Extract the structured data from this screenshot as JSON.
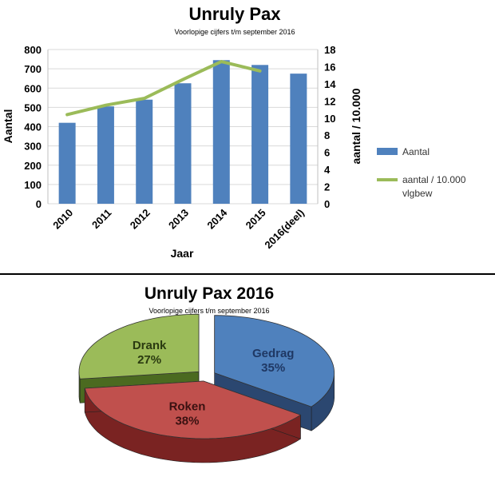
{
  "chart_data": [
    {
      "type": "bar",
      "title": "Unruly Pax",
      "subtitle": "Voorlopige cijfers t/m september 2016",
      "xlabel": "Jaar",
      "ylabel": "Aantal",
      "y2label": "aantal / 10.000",
      "categories": [
        "2010",
        "2011",
        "2012",
        "2013",
        "2014",
        "2015",
        "2016(deel)"
      ],
      "ylim": [
        0,
        800
      ],
      "y_ticks": [
        "0",
        "100",
        "200",
        "300",
        "400",
        "500",
        "600",
        "700",
        "800"
      ],
      "y2lim": [
        0,
        18
      ],
      "y2_ticks": [
        "0",
        "2",
        "4",
        "6",
        "8",
        "10",
        "12",
        "14",
        "16",
        "18"
      ],
      "series": [
        {
          "name": "Aantal",
          "kind": "bar",
          "axis": "left",
          "color": "#4f81bd",
          "values": [
            420,
            505,
            540,
            625,
            745,
            720,
            675
          ]
        },
        {
          "name": "aantal / 10.000 vlgbew",
          "kind": "line",
          "axis": "right",
          "color": "#9bbb59",
          "values": [
            10.4,
            11.5,
            12.3,
            14.5,
            16.6,
            15.5,
            null
          ]
        }
      ],
      "legend": "right",
      "grid": true
    },
    {
      "type": "pie",
      "title": "Unruly Pax 2016",
      "subtitle": "Voorlopige cijfers t/m september 2016",
      "slices": [
        {
          "label": "Gedrag",
          "value": 35,
          "value_label": "35%",
          "color": "#4f81bd",
          "dark": "#2b4770",
          "text": "#1f3864"
        },
        {
          "label": "Roken",
          "value": 38,
          "value_label": "38%",
          "color": "#c0504d",
          "dark": "#7a2322",
          "text": "#3a1111"
        },
        {
          "label": "Drank",
          "value": 27,
          "value_label": "27%",
          "color": "#9bbb59",
          "dark": "#4b6a20",
          "text": "#2a3a10"
        }
      ]
    }
  ]
}
